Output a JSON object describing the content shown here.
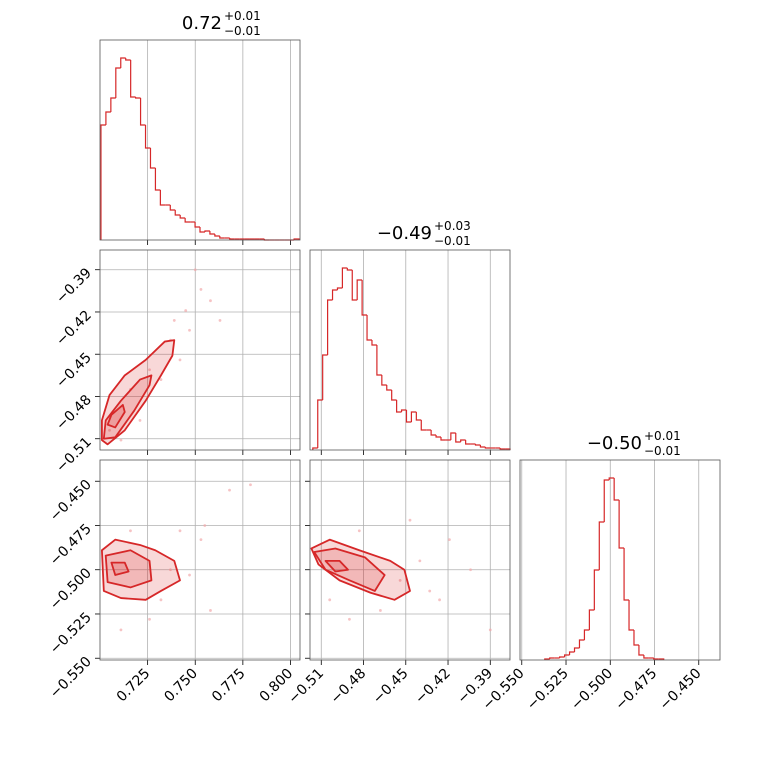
{
  "chart_data": [
    {
      "type": "histogram",
      "title": "0.72",
      "title_upper": "+0.01",
      "title_lower": "−0.01",
      "color": "#d62728",
      "bins": [
        0.7005,
        0.7031,
        0.7057,
        0.7083,
        0.7109,
        0.7135,
        0.7161,
        0.7187,
        0.7213,
        0.7239,
        0.7265,
        0.7291,
        0.7317,
        0.7343,
        0.7369,
        0.7395,
        0.7421,
        0.7447,
        0.7473,
        0.7499,
        0.7525,
        0.7551,
        0.7577,
        0.7603,
        0.7629,
        0.7655,
        0.7681,
        0.7707,
        0.7733,
        0.7759,
        0.7785,
        0.7811,
        0.7837,
        0.7863,
        0.7889,
        0.7915,
        0.7941,
        0.7967,
        0.7993,
        0.8019,
        0.8045
      ],
      "counts": [
        115,
        128,
        142,
        172,
        182,
        180,
        143,
        142,
        115,
        92,
        72,
        50,
        35,
        35,
        30,
        25,
        22,
        18,
        18,
        13,
        8,
        9,
        6,
        4,
        2,
        2,
        1,
        1,
        1,
        1,
        1,
        1,
        1,
        0,
        0,
        0,
        0,
        0,
        0,
        1
      ],
      "xlim": [
        0.7,
        0.805
      ],
      "ylim": [
        0,
        200
      ],
      "xticks": [
        0.725,
        0.75,
        0.775,
        0.8
      ],
      "xticklabels": false,
      "grid": true
    },
    {
      "type": "contour",
      "color": "#d62728",
      "point_color": "#f2a9ab",
      "xlim": [
        0.7,
        0.805
      ],
      "ylim": [
        -0.518,
        -0.376
      ],
      "xticks": [
        0.725,
        0.75,
        0.775,
        0.8
      ],
      "xticklabels": false,
      "yticks": [
        {
          "value": -0.39,
          "label": "−0.39"
        },
        {
          "value": -0.42,
          "label": "−0.42"
        },
        {
          "value": -0.45,
          "label": "−0.45"
        },
        {
          "value": -0.48,
          "label": "−0.48"
        },
        {
          "value": -0.51,
          "label": "−0.51"
        }
      ],
      "yticklabels": true,
      "grid": true,
      "points": {
        "x": [
          0.705,
          0.716,
          0.726,
          0.737,
          0.745,
          0.753,
          0.747,
          0.732,
          0.721,
          0.742,
          0.758,
          0.711,
          0.739,
          0.75,
          0.763
        ],
        "y": [
          -0.504,
          -0.475,
          -0.461,
          -0.44,
          -0.419,
          -0.404,
          -0.433,
          -0.468,
          -0.497,
          -0.454,
          -0.412,
          -0.511,
          -0.426,
          -0.39,
          -0.426
        ]
      },
      "contours": [
        {
          "x": [
            0.701,
            0.704,
            0.713,
            0.724,
            0.732,
            0.738,
            0.739,
            0.734,
            0.724,
            0.713,
            0.705,
            0.701
          ],
          "y": [
            -0.511,
            -0.514,
            -0.504,
            -0.483,
            -0.465,
            -0.451,
            -0.44,
            -0.441,
            -0.454,
            -0.465,
            -0.479,
            -0.497
          ]
        },
        {
          "x": [
            0.702,
            0.708,
            0.718,
            0.726,
            0.727,
            0.721,
            0.711,
            0.703
          ],
          "y": [
            -0.51,
            -0.509,
            -0.49,
            -0.472,
            -0.465,
            -0.468,
            -0.483,
            -0.497
          ]
        },
        {
          "x": [
            0.704,
            0.708,
            0.713,
            0.712,
            0.706
          ],
          "y": [
            -0.5,
            -0.502,
            -0.491,
            -0.486,
            -0.493
          ]
        }
      ]
    },
    {
      "type": "contour",
      "color": "#d62728",
      "point_color": "#f2a9ab",
      "xlim": [
        0.7,
        0.805
      ],
      "ylim": [
        -0.551,
        -0.438
      ],
      "xticks": [
        0.725,
        {
          "value": 0.75,
          "label": "0.750"
        },
        0.775,
        {
          "value": 0.8,
          "label": "0.800"
        }
      ],
      "xticklabels": true,
      "yticks": [
        {
          "value": -0.45,
          "label": "−0.450"
        },
        {
          "value": -0.475,
          "label": "−0.475"
        },
        {
          "value": -0.5,
          "label": "−0.500"
        },
        {
          "value": -0.525,
          "label": "−0.525"
        },
        {
          "value": -0.55,
          "label": "−0.550"
        }
      ],
      "yticklabels": true,
      "grid": true,
      "points": {
        "x": [
          0.716,
          0.732,
          0.753,
          0.747,
          0.758,
          0.768,
          0.726,
          0.742,
          0.779,
          0.711,
          0.737,
          0.755
        ],
        "y": [
          -0.478,
          -0.517,
          -0.483,
          -0.503,
          -0.523,
          -0.455,
          -0.528,
          -0.478,
          -0.452,
          -0.534,
          -0.5,
          -0.475
        ]
      },
      "contours": [
        {
          "x": [
            0.701,
            0.708,
            0.721,
            0.729,
            0.739,
            0.742,
            0.732,
            0.724,
            0.711,
            0.702
          ],
          "y": [
            -0.489,
            -0.483,
            -0.486,
            -0.489,
            -0.495,
            -0.506,
            -0.512,
            -0.517,
            -0.516,
            -0.512
          ]
        },
        {
          "x": [
            0.703,
            0.716,
            0.726,
            0.727,
            0.716,
            0.704
          ],
          "y": [
            -0.492,
            -0.489,
            -0.495,
            -0.506,
            -0.51,
            -0.507
          ]
        },
        {
          "x": [
            0.706,
            0.713,
            0.715,
            0.708
          ],
          "y": [
            -0.496,
            -0.496,
            -0.501,
            -0.503
          ]
        }
      ]
    },
    {
      "type": "histogram",
      "title": "−0.49",
      "title_upper": "+0.03",
      "title_lower": "−0.01",
      "color": "#d62728",
      "bins": [
        -0.516,
        -0.5125,
        -0.509,
        -0.5055,
        -0.502,
        -0.4985,
        -0.495,
        -0.4915,
        -0.488,
        -0.4845,
        -0.481,
        -0.4775,
        -0.474,
        -0.4705,
        -0.467,
        -0.4635,
        -0.46,
        -0.4565,
        -0.453,
        -0.4495,
        -0.446,
        -0.4425,
        -0.439,
        -0.4355,
        -0.432,
        -0.4285,
        -0.425,
        -0.4215,
        -0.418,
        -0.4145,
        -0.411,
        -0.4075,
        -0.404,
        -0.4005,
        -0.397,
        -0.3935,
        -0.39,
        -0.3865,
        -0.383,
        -0.3795,
        -0.376
      ],
      "counts": [
        2,
        50,
        95,
        150,
        160,
        162,
        182,
        180,
        150,
        170,
        135,
        110,
        105,
        75,
        65,
        60,
        50,
        38,
        40,
        28,
        38,
        30,
        20,
        20,
        15,
        13,
        10,
        10,
        17,
        8,
        10,
        6,
        6,
        5,
        3,
        2,
        2,
        2,
        1,
        1
      ],
      "xlim": [
        -0.518,
        -0.376
      ],
      "ylim": [
        0,
        200
      ],
      "xticks": [
        -0.51,
        -0.48,
        -0.45,
        -0.42,
        -0.39
      ],
      "xticklabels": false,
      "grid": true
    },
    {
      "type": "contour",
      "color": "#d62728",
      "point_color": "#f2a9ab",
      "xlim": [
        -0.518,
        -0.376
      ],
      "ylim": [
        -0.551,
        -0.438
      ],
      "xticks": [
        {
          "value": -0.51,
          "label": "−0.51"
        },
        {
          "value": -0.48,
          "label": "−0.48"
        },
        {
          "value": -0.45,
          "label": "−0.45"
        },
        {
          "value": -0.42,
          "label": "−0.42"
        },
        {
          "value": -0.39,
          "label": "−0.39"
        }
      ],
      "xticklabels": true,
      "yticks": [
        -0.45,
        -0.475,
        -0.5,
        -0.525,
        -0.55
      ],
      "yticklabels": false,
      "grid": true,
      "points": {
        "x": [
          -0.504,
          -0.483,
          -0.454,
          -0.44,
          -0.426,
          -0.404,
          -0.468,
          -0.419,
          -0.39,
          -0.447,
          -0.49,
          -0.433
        ],
        "y": [
          -0.517,
          -0.478,
          -0.506,
          -0.495,
          -0.517,
          -0.5,
          -0.523,
          -0.483,
          -0.534,
          -0.472,
          -0.528,
          -0.512
        ]
      },
      "contours": [
        {
          "x": [
            -0.517,
            -0.504,
            -0.483,
            -0.461,
            -0.451,
            -0.447,
            -0.458,
            -0.475,
            -0.497,
            -0.512
          ],
          "y": [
            -0.488,
            -0.483,
            -0.489,
            -0.495,
            -0.5,
            -0.512,
            -0.517,
            -0.513,
            -0.506,
            -0.497
          ]
        },
        {
          "x": [
            -0.515,
            -0.5,
            -0.479,
            -0.465,
            -0.472,
            -0.49,
            -0.507
          ],
          "y": [
            -0.49,
            -0.488,
            -0.493,
            -0.503,
            -0.512,
            -0.506,
            -0.5
          ]
        },
        {
          "x": [
            -0.507,
            -0.497,
            -0.491,
            -0.5
          ],
          "y": [
            -0.495,
            -0.495,
            -0.5,
            -0.501
          ]
        }
      ]
    },
    {
      "type": "histogram",
      "title": "−0.50",
      "title_upper": "+0.01",
      "title_lower": "−0.01",
      "color": "#d62728",
      "bins": [
        -0.537,
        -0.5342,
        -0.5314,
        -0.5286,
        -0.5258,
        -0.523,
        -0.5202,
        -0.5174,
        -0.5146,
        -0.5118,
        -0.509,
        -0.5062,
        -0.5034,
        -0.5006,
        -0.4978,
        -0.495,
        -0.4922,
        -0.4894,
        -0.4866,
        -0.4838,
        -0.481,
        -0.4782,
        -0.4754,
        -0.4726,
        -0.4698
      ],
      "counts": [
        1,
        2,
        2,
        3,
        5,
        8,
        12,
        20,
        30,
        50,
        90,
        138,
        180,
        182,
        160,
        112,
        60,
        30,
        15,
        5,
        2,
        2,
        1,
        1
      ],
      "xlim": [
        -0.551,
        -0.438
      ],
      "ylim": [
        0,
        200
      ],
      "xticks": [
        {
          "value": -0.55,
          "label": "−0.550"
        },
        {
          "value": -0.525,
          "label": "−0.525"
        },
        {
          "value": -0.5,
          "label": "−0.500"
        },
        {
          "value": -0.475,
          "label": "−0.475"
        },
        {
          "value": -0.45,
          "label": "−0.450"
        }
      ],
      "xticklabels": true,
      "grid": true
    }
  ]
}
